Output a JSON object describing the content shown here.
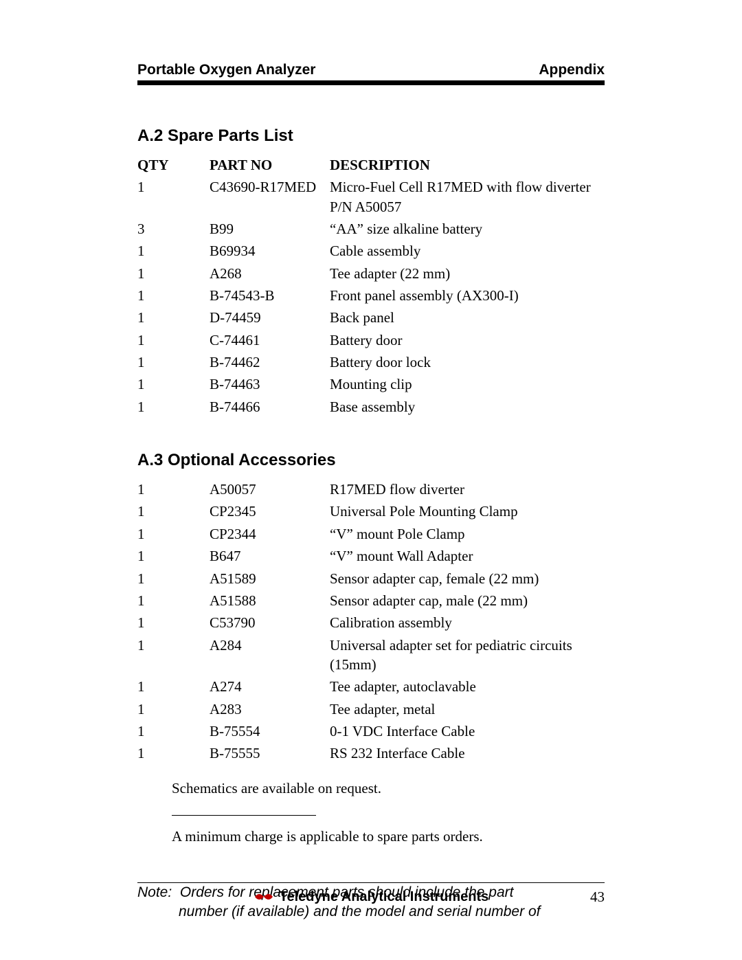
{
  "header": {
    "left": "Portable Oxygen Analyzer",
    "right": "Appendix"
  },
  "section1": {
    "heading": "A.2 Spare Parts List",
    "columns": {
      "qty": "QTY",
      "part": "PART NO",
      "desc": "DESCRIPTION"
    },
    "rows": [
      {
        "qty": "1",
        "part": "C43690-R17MED",
        "desc": "Micro-Fuel Cell R17MED with flow diverter P/N A50057"
      },
      {
        "qty": "3",
        "part": "B99",
        "desc": "“AA” size alkaline battery"
      },
      {
        "qty": "1",
        "part": "B69934",
        "desc": "Cable assembly"
      },
      {
        "qty": "1",
        "part": "A268",
        "desc": "Tee adapter (22 mm)"
      },
      {
        "qty": "1",
        "part": "B-74543-B",
        "desc": "Front panel assembly (AX300-I)"
      },
      {
        "qty": "1",
        "part": "D-74459",
        "desc": "Back panel"
      },
      {
        "qty": "1",
        "part": "C-74461",
        "desc": "Battery door"
      },
      {
        "qty": "1",
        "part": "B-74462",
        "desc": "Battery door lock"
      },
      {
        "qty": "1",
        "part": "B-74463",
        "desc": "Mounting clip"
      },
      {
        "qty": "1",
        "part": "B-74466",
        "desc": "Base assembly"
      }
    ]
  },
  "section2": {
    "heading": "A.3 Optional Accessories",
    "rows": [
      {
        "qty": "1",
        "part": "A50057",
        "desc": "R17MED flow diverter"
      },
      {
        "qty": "1",
        "part": "CP2345",
        "desc": "Universal Pole Mounting Clamp"
      },
      {
        "qty": "1",
        "part": "CP2344",
        "desc": "“V” mount Pole Clamp"
      },
      {
        "qty": "1",
        "part": "B647",
        "desc": "“V” mount Wall Adapter"
      },
      {
        "qty": "1",
        "part": "A51589",
        "desc": "Sensor adapter cap, female (22 mm)"
      },
      {
        "qty": "1",
        "part": "A51588",
        "desc": "Sensor adapter cap, male (22 mm)"
      },
      {
        "qty": "1",
        "part": "C53790",
        "desc": "Calibration assembly"
      },
      {
        "qty": "1",
        "part": "A284",
        "desc": "Universal adapter set for pediatric circuits (15mm)"
      },
      {
        "qty": "1",
        "part": "A274",
        "desc": "Tee adapter, autoclavable"
      },
      {
        "qty": "1",
        "part": "A283",
        "desc": "Tee adapter, metal"
      },
      {
        "qty": "1",
        "part": "B-75554",
        "desc": "0-1 VDC Interface Cable"
      },
      {
        "qty": "1",
        "part": "B-75555",
        "desc": "RS 232 Interface Cable"
      }
    ]
  },
  "footnote1": "Schematics are available on request.",
  "footnote2": "A minimum charge is applicable to spare parts orders.",
  "note_label": "Note:",
  "note_line1": "Orders for replacement parts should include the part",
  "note_line2": "number (if available) and the model and serial number of",
  "footer": {
    "company": "Teledyne Analytical Instruments",
    "page": "43",
    "logo_color": "#c00000"
  }
}
